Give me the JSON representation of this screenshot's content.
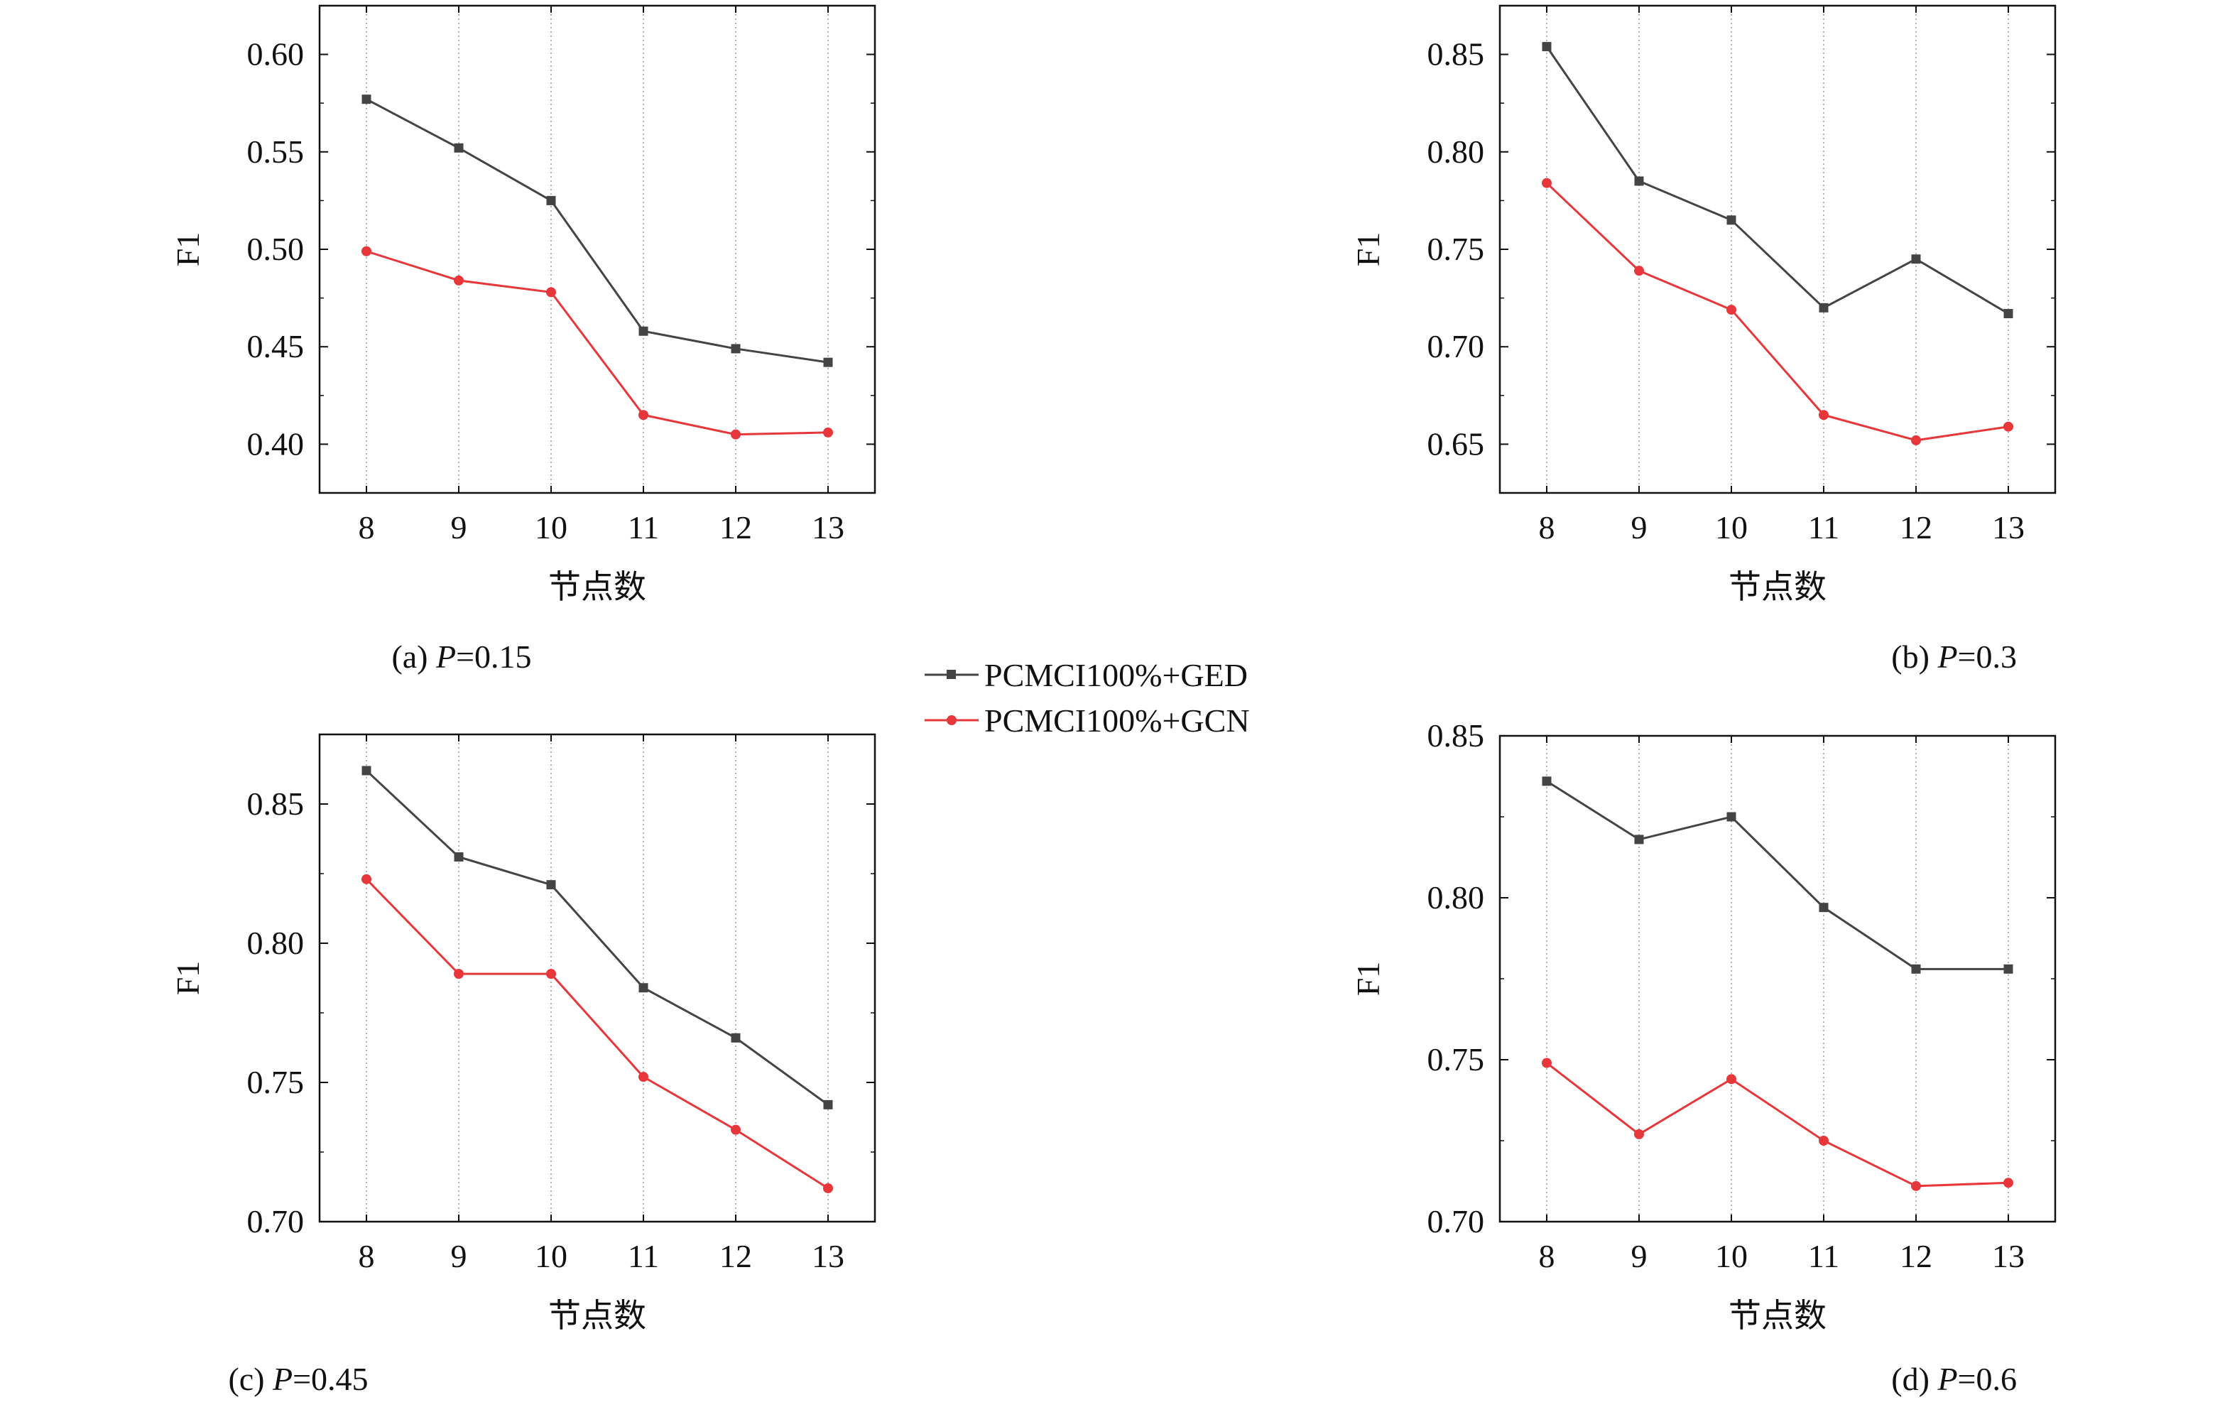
{
  "legend": [
    {
      "name": "PCMCI100%+GED",
      "color": "#444444",
      "marker": "square"
    },
    {
      "name": "PCMCI100%+GCN",
      "color": "#e8373a",
      "marker": "circle"
    }
  ],
  "chart_data": [
    {
      "type": "line",
      "caption": {
        "prefix": "(a) ",
        "var": "P",
        "suffix": "=0.15"
      },
      "xlabel": "节点数",
      "ylabel": "F1",
      "x": [
        8,
        9,
        10,
        11,
        12,
        13
      ],
      "xticks": [
        "8",
        "9",
        "10",
        "11",
        "12",
        "13"
      ],
      "yticks": [
        "0.40",
        "0.45",
        "0.50",
        "0.55",
        "0.60"
      ],
      "ylim": [
        0.375,
        0.625
      ],
      "grid": "vertical dotted",
      "series": [
        {
          "name": "PCMCI100%+GED",
          "values": [
            0.577,
            0.552,
            0.525,
            0.458,
            0.449,
            0.442
          ]
        },
        {
          "name": "PCMCI100%+GCN",
          "values": [
            0.499,
            0.484,
            0.478,
            0.415,
            0.405,
            0.406
          ]
        }
      ]
    },
    {
      "type": "line",
      "caption": {
        "prefix": "(b) ",
        "var": "P",
        "suffix": "=0.3"
      },
      "xlabel": "节点数",
      "ylabel": "F1",
      "x": [
        8,
        9,
        10,
        11,
        12,
        13
      ],
      "xticks": [
        "8",
        "9",
        "10",
        "11",
        "12",
        "13"
      ],
      "yticks": [
        "0.65",
        "0.70",
        "0.75",
        "0.80",
        "0.85"
      ],
      "ylim": [
        0.625,
        0.875
      ],
      "grid": "vertical dotted",
      "series": [
        {
          "name": "PCMCI100%+GED",
          "values": [
            0.854,
            0.785,
            0.765,
            0.72,
            0.745,
            0.717
          ]
        },
        {
          "name": "PCMCI100%+GCN",
          "values": [
            0.784,
            0.739,
            0.719,
            0.665,
            0.652,
            0.659
          ]
        }
      ]
    },
    {
      "type": "line",
      "caption": {
        "prefix": "(c) ",
        "var": "P",
        "suffix": "=0.45"
      },
      "xlabel": "节点数",
      "ylabel": "F1",
      "x": [
        8,
        9,
        10,
        11,
        12,
        13
      ],
      "xticks": [
        "8",
        "9",
        "10",
        "11",
        "12",
        "13"
      ],
      "yticks": [
        "0.70",
        "0.75",
        "0.80",
        "0.85"
      ],
      "ylim": [
        0.7,
        0.875
      ],
      "grid": "vertical dotted",
      "series": [
        {
          "name": "PCMCI100%+GED",
          "values": [
            0.862,
            0.831,
            0.821,
            0.784,
            0.766,
            0.742
          ]
        },
        {
          "name": "PCMCI100%+GCN",
          "values": [
            0.823,
            0.789,
            0.789,
            0.752,
            0.733,
            0.712
          ]
        }
      ]
    },
    {
      "type": "line",
      "caption": {
        "prefix": "(d) ",
        "var": "P",
        "suffix": "=0.6"
      },
      "xlabel": "节点数",
      "ylabel": "F1",
      "x": [
        8,
        9,
        10,
        11,
        12,
        13
      ],
      "xticks": [
        "8",
        "9",
        "10",
        "11",
        "12",
        "13"
      ],
      "yticks": [
        "0.70",
        "0.75",
        "0.80",
        "0.85"
      ],
      "ylim": [
        0.7,
        0.85
      ],
      "grid": "vertical dotted",
      "series": [
        {
          "name": "PCMCI100%+GED",
          "values": [
            0.836,
            0.818,
            0.825,
            0.797,
            0.778,
            0.778
          ]
        },
        {
          "name": "PCMCI100%+GCN",
          "values": [
            0.749,
            0.727,
            0.744,
            0.725,
            0.711,
            0.712
          ]
        }
      ]
    }
  ]
}
